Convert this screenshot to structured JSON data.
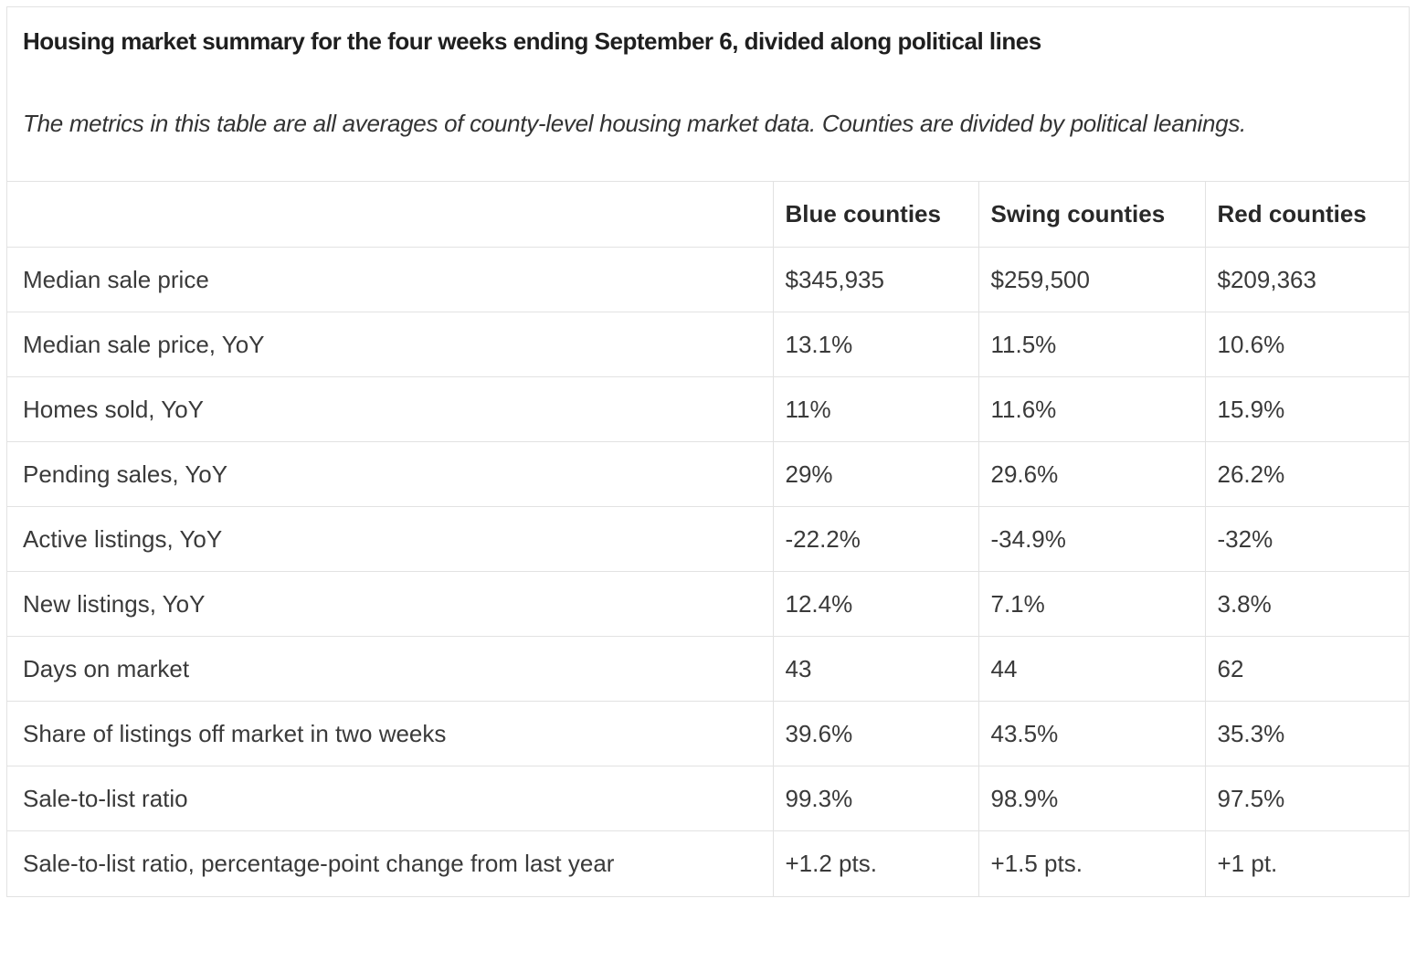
{
  "header": {
    "title": "Housing market summary for the four weeks ending September 6, divided along political lines",
    "description": "The metrics in this table are all averages of county-level housing market data. Counties are divided by political leanings."
  },
  "table": {
    "columns": [
      "Blue counties",
      "Swing counties",
      "Red counties"
    ],
    "rows": [
      {
        "label": "Median sale price",
        "values": [
          "$345,935",
          "$259,500",
          "$209,363"
        ]
      },
      {
        "label": "Median sale price, YoY",
        "values": [
          "13.1%",
          "11.5%",
          "10.6%"
        ]
      },
      {
        "label": "Homes sold, YoY",
        "values": [
          "11%",
          "11.6%",
          "15.9%"
        ]
      },
      {
        "label": "Pending sales, YoY",
        "values": [
          "29%",
          "29.6%",
          "26.2%"
        ]
      },
      {
        "label": "Active listings, YoY",
        "values": [
          "-22.2%",
          "-34.9%",
          "-32%"
        ]
      },
      {
        "label": "New listings, YoY",
        "values": [
          "12.4%",
          "7.1%",
          "3.8%"
        ]
      },
      {
        "label": "Days on market",
        "values": [
          "43",
          "44",
          "62"
        ]
      },
      {
        "label": "Share of listings off market in two weeks",
        "values": [
          "39.6%",
          "43.5%",
          "35.3%"
        ]
      },
      {
        "label": "Sale-to-list ratio",
        "values": [
          "99.3%",
          "98.9%",
          "97.5%"
        ]
      },
      {
        "label": "Sale-to-list ratio, percentage-point change from last year",
        "values": [
          "+1.2 pts.",
          "+1.5 pts.",
          "+1 pt."
        ]
      }
    ]
  },
  "colors": {
    "border": "#e2e2e2",
    "title_text": "#1f1f1f",
    "body_text": "#3a3a3a"
  },
  "chart_data": {
    "type": "table",
    "title": "Housing market summary for the four weeks ending September 6, divided along political lines",
    "subtitle": "The metrics in this table are all averages of county-level housing market data. Counties are divided by political leanings.",
    "categories": [
      "Blue counties",
      "Swing counties",
      "Red counties"
    ],
    "series": [
      {
        "name": "Median sale price",
        "values": [
          345935,
          259500,
          209363
        ],
        "unit": "USD"
      },
      {
        "name": "Median sale price, YoY",
        "values": [
          13.1,
          11.5,
          10.6
        ],
        "unit": "%"
      },
      {
        "name": "Homes sold, YoY",
        "values": [
          11,
          11.6,
          15.9
        ],
        "unit": "%"
      },
      {
        "name": "Pending sales, YoY",
        "values": [
          29,
          29.6,
          26.2
        ],
        "unit": "%"
      },
      {
        "name": "Active listings, YoY",
        "values": [
          -22.2,
          -34.9,
          -32
        ],
        "unit": "%"
      },
      {
        "name": "New listings, YoY",
        "values": [
          12.4,
          7.1,
          3.8
        ],
        "unit": "%"
      },
      {
        "name": "Days on market",
        "values": [
          43,
          44,
          62
        ],
        "unit": "days"
      },
      {
        "name": "Share of listings off market in two weeks",
        "values": [
          39.6,
          43.5,
          35.3
        ],
        "unit": "%"
      },
      {
        "name": "Sale-to-list ratio",
        "values": [
          99.3,
          98.9,
          97.5
        ],
        "unit": "%"
      },
      {
        "name": "Sale-to-list ratio, percentage-point change from last year",
        "values": [
          1.2,
          1.5,
          1.0
        ],
        "unit": "pts"
      }
    ]
  }
}
